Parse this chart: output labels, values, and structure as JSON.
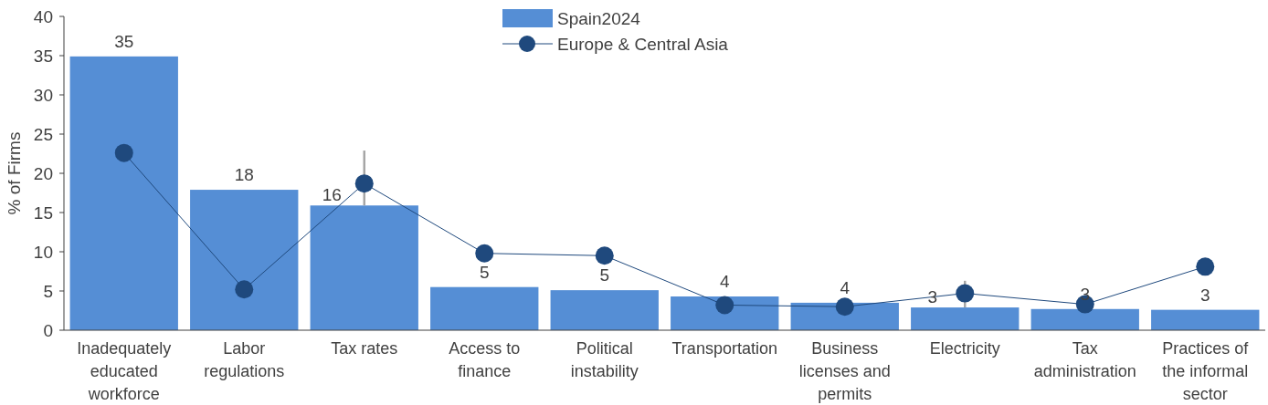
{
  "chart_data": {
    "type": "bar",
    "ylabel": "% of Firms",
    "categories": [
      "Inadequately educated workforce",
      "Labor regulations",
      "Tax rates",
      "Access to finance",
      "Political instability",
      "Transportation",
      "Business licenses and permits",
      "Electricity",
      "Tax administration",
      "Practices of the informal sector"
    ],
    "series": [
      {
        "name": "Spain2024",
        "color": "#558ed5",
        "values": [
          34.9,
          17.9,
          15.9,
          5.5,
          5.1,
          4.3,
          3.5,
          2.9,
          2.7,
          2.6
        ],
        "value_labels": [
          "35",
          "18",
          "16",
          "5",
          "5",
          "4",
          "4",
          "3",
          "3",
          "3"
        ]
      },
      {
        "name": "Europe & Central Asia",
        "type": "line",
        "color": "#1f497d",
        "marker": "circle",
        "values": [
          22.6,
          5.2,
          18.7,
          9.8,
          9.5,
          3.2,
          3.0,
          4.7,
          3.3,
          8.1
        ],
        "errors": [
          null,
          null,
          [
            15.9,
            22.9
          ],
          null,
          null,
          null,
          null,
          [
            2.9,
            6.3
          ],
          null,
          null
        ]
      }
    ],
    "ylim": [
      0,
      40
    ],
    "yticks": [
      0,
      5,
      10,
      15,
      20,
      25,
      30,
      35,
      40
    ],
    "grid": false,
    "legend": "top"
  }
}
